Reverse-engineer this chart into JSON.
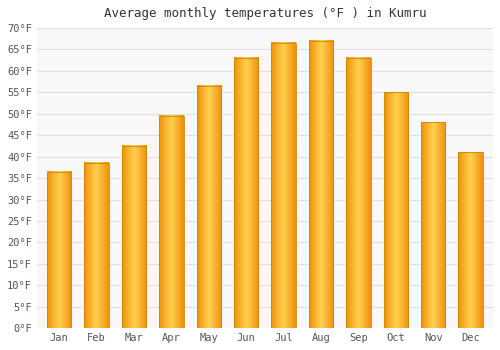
{
  "title": "Average monthly temperatures (°F ) in Kumru",
  "months": [
    "Jan",
    "Feb",
    "Mar",
    "Apr",
    "May",
    "Jun",
    "Jul",
    "Aug",
    "Sep",
    "Oct",
    "Nov",
    "Dec"
  ],
  "values": [
    36.5,
    38.5,
    42.5,
    49.5,
    56.5,
    63.0,
    66.5,
    67.0,
    63.0,
    55.0,
    48.0,
    41.0
  ],
  "bar_color_center": "#FFD050",
  "bar_color_edge": "#F0900A",
  "ylim": [
    0,
    70
  ],
  "yticks": [
    0,
    5,
    10,
    15,
    20,
    25,
    30,
    35,
    40,
    45,
    50,
    55,
    60,
    65,
    70
  ],
  "ytick_labels": [
    "0°F",
    "5°F",
    "10°F",
    "15°F",
    "20°F",
    "25°F",
    "30°F",
    "35°F",
    "40°F",
    "45°F",
    "50°F",
    "55°F",
    "60°F",
    "65°F",
    "70°F"
  ],
  "background_color": "#ffffff",
  "plot_bg_color": "#f8f8f8",
  "grid_color": "#e0e0e0",
  "title_fontsize": 9,
  "tick_fontsize": 7.5
}
